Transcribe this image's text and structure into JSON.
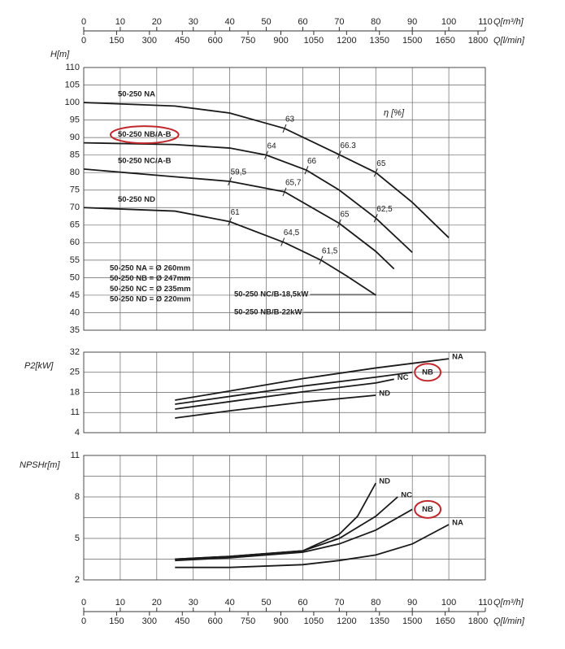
{
  "chart_data": [
    {
      "type": "line",
      "ylabel": "H[m]",
      "qaxis": "top",
      "xlabel": "Q[m³/h]",
      "x2label": "Q[l/min]",
      "xlim": [
        0,
        110
      ],
      "xticks": [
        0,
        10,
        20,
        30,
        40,
        50,
        60,
        70,
        80,
        90,
        100,
        110
      ],
      "x2lim": [
        0,
        1833.33
      ],
      "x2ticks": [
        0,
        150,
        300,
        450,
        600,
        750,
        900,
        1050,
        1200,
        1350,
        1500,
        1650,
        1800
      ],
      "ylim": [
        35,
        110
      ],
      "yticks": [
        35,
        40,
        45,
        50,
        55,
        60,
        65,
        70,
        75,
        80,
        85,
        90,
        95,
        100,
        105,
        110
      ],
      "grid": true,
      "series_label": "start",
      "series": [
        {
          "name": "50-250 NA",
          "color": "#1a1a1a",
          "x": [
            0,
            25,
            40,
            55,
            70,
            80,
            90,
            100
          ],
          "values": [
            100,
            99,
            97,
            92.6,
            85.1,
            80,
            71.5,
            61.4
          ]
        },
        {
          "name": "50-250 NB/A-B",
          "color": "#1a1a1a",
          "highlight": true,
          "x": [
            0,
            25,
            40,
            50,
            61,
            70,
            80,
            90
          ],
          "values": [
            88.5,
            88,
            87,
            85,
            80.7,
            75,
            67,
            57.2
          ]
        },
        {
          "name": "50-250 NC/A-B",
          "color": "#1a1a1a",
          "x": [
            0,
            25,
            40,
            55,
            70,
            80,
            85
          ],
          "values": [
            81,
            78.8,
            77.5,
            74.5,
            65.5,
            57.5,
            52.5
          ]
        },
        {
          "name": "50-250 ND",
          "color": "#1a1a1a",
          "x": [
            0,
            25,
            40,
            55,
            65,
            72,
            80
          ],
          "values": [
            70,
            69,
            66,
            60,
            55,
            50.5,
            45
          ]
        }
      ],
      "efficiency": {
        "label": "η [%]",
        "points": [
          {
            "q": 55,
            "h": 92.6,
            "eta": 63
          },
          {
            "q": 70,
            "h": 85.1,
            "eta": 66.3
          },
          {
            "q": 80,
            "h": 80,
            "eta": 65
          },
          {
            "q": 50,
            "h": 85,
            "eta": 64
          },
          {
            "q": 61,
            "h": 80.7,
            "eta": 66
          },
          {
            "q": 80,
            "h": 67,
            "eta": {
              "value": 62.5,
              "label": "62,5"
            }
          },
          {
            "q": 40,
            "h": 77.5,
            "eta": {
              "value": 59.5,
              "label": "59,5"
            }
          },
          {
            "q": 55,
            "h": 74.5,
            "eta": {
              "value": 65.7,
              "label": "65,7"
            }
          },
          {
            "q": 70,
            "h": 65.5,
            "eta": 65
          },
          {
            "q": 40,
            "h": 66,
            "eta": 61
          },
          {
            "q": 54.5,
            "h": 60.2,
            "eta": {
              "value": 64.5,
              "label": "64,5"
            }
          },
          {
            "q": 65,
            "h": 55,
            "eta": {
              "value": 61.5,
              "label": "61,5"
            }
          }
        ]
      },
      "diameters": [
        "50-250 NA = Ø 260mm",
        "50-250 NB = Ø 247mm",
        "50-250 NC = Ø 235mm",
        "50-250 ND = Ø 220mm"
      ],
      "motor_notes": [
        "50-250 NC/B-18,5kW",
        "50-250 NB/B-22kW"
      ]
    },
    {
      "type": "line",
      "ylabel": "P2[kW]",
      "xlim": [
        0,
        110
      ],
      "xticks": [
        0,
        10,
        20,
        30,
        40,
        50,
        60,
        70,
        80,
        90,
        100,
        110
      ],
      "ylim": [
        4,
        32
      ],
      "yticks": [
        4,
        11,
        18,
        25,
        32
      ],
      "grid": true,
      "series_label": "end",
      "series": [
        {
          "name": "NA",
          "color": "#1a1a1a",
          "x": [
            25,
            40,
            60,
            80,
            100
          ],
          "values": [
            15.3,
            18.5,
            22.8,
            26.5,
            29.7
          ]
        },
        {
          "name": "NB",
          "color": "#1a1a1a",
          "highlight": true,
          "x": [
            25,
            40,
            60,
            80,
            90
          ],
          "values": [
            13.9,
            16.6,
            20.2,
            23.3,
            25
          ]
        },
        {
          "name": "NC",
          "color": "#1a1a1a",
          "x": [
            25,
            40,
            60,
            80,
            85
          ],
          "values": [
            12.2,
            14.8,
            18.2,
            21.3,
            22.6
          ]
        },
        {
          "name": "ND",
          "color": "#1a1a1a",
          "x": [
            25,
            40,
            60,
            80
          ],
          "values": [
            9.1,
            11.6,
            14.6,
            17
          ]
        }
      ]
    },
    {
      "type": "line",
      "ylabel": "NPSHr[m]",
      "qaxis": "bottom",
      "xlabel": "Q[m³/h]",
      "x2label": "Q[l/min]",
      "xlim": [
        0,
        110
      ],
      "xticks": [
        0,
        10,
        20,
        30,
        40,
        50,
        60,
        70,
        80,
        90,
        100,
        110
      ],
      "x2lim": [
        0,
        1833.33
      ],
      "x2ticks": [
        0,
        150,
        300,
        450,
        600,
        750,
        900,
        1050,
        1200,
        1350,
        1500,
        1650,
        1800
      ],
      "ylim": [
        2,
        11
      ],
      "yticks": [
        2,
        5,
        8,
        11
      ],
      "yminor": [
        3.5,
        6.5,
        9.5
      ],
      "grid": true,
      "series_label": "end",
      "series": [
        {
          "name": "ND",
          "color": "#1a1a1a",
          "x": [
            25,
            40,
            60,
            70,
            75,
            80
          ],
          "values": [
            3.5,
            3.7,
            4.1,
            5.3,
            6.6,
            9
          ]
        },
        {
          "name": "NC",
          "color": "#1a1a1a",
          "x": [
            25,
            40,
            60,
            70,
            80,
            86
          ],
          "values": [
            3.5,
            3.7,
            4.1,
            5,
            6.6,
            8
          ]
        },
        {
          "name": "NB",
          "color": "#1a1a1a",
          "highlight": true,
          "x": [
            25,
            40,
            60,
            70,
            80,
            90
          ],
          "values": [
            3.4,
            3.6,
            4,
            4.6,
            5.6,
            7.1
          ]
        },
        {
          "name": "NA",
          "color": "#1a1a1a",
          "x": [
            25,
            40,
            60,
            70,
            80,
            90,
            100
          ],
          "values": [
            2.9,
            2.9,
            3.1,
            3.4,
            3.8,
            4.6,
            6
          ]
        }
      ]
    }
  ]
}
